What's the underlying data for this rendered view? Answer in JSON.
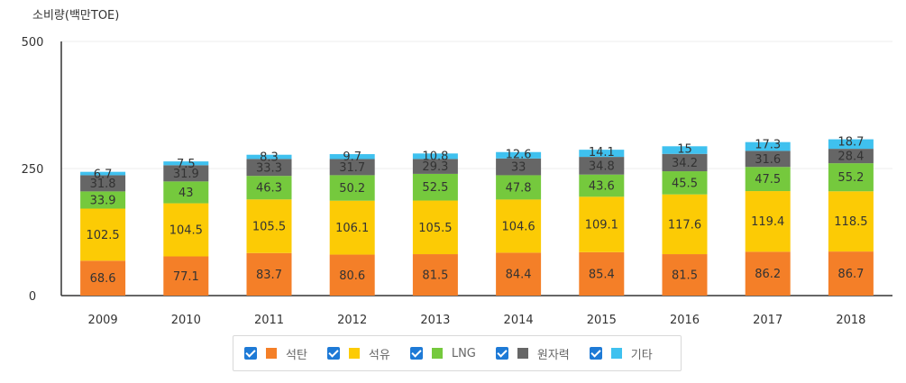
{
  "unit_label": "소비량(백만TOE)",
  "chart_data": {
    "type": "bar",
    "stacked": true,
    "categories": [
      "2009",
      "2010",
      "2011",
      "2012",
      "2013",
      "2014",
      "2015",
      "2016",
      "2017",
      "2018"
    ],
    "series": [
      {
        "name": "석탄",
        "color": "#f47f28",
        "values": [
          68.6,
          77.1,
          83.7,
          80.6,
          81.5,
          84.4,
          85.4,
          81.5,
          86.2,
          86.7
        ]
      },
      {
        "name": "석유",
        "color": "#fccb05",
        "values": [
          102.5,
          104.5,
          105.5,
          106.1,
          105.5,
          104.6,
          109.1,
          117.6,
          119.4,
          118.5
        ]
      },
      {
        "name": "LNG",
        "color": "#75c93d",
        "values": [
          33.9,
          43,
          46.3,
          50.2,
          52.5,
          47.8,
          43.6,
          45.5,
          47.5,
          55.2
        ]
      },
      {
        "name": "원자력",
        "color": "#666666",
        "values": [
          31.8,
          31.9,
          33.3,
          31.7,
          29.3,
          33,
          34.8,
          34.2,
          31.6,
          28.4
        ]
      },
      {
        "name": "기타",
        "color": "#3fc1ef",
        "values": [
          6.7,
          7.5,
          8.3,
          9.7,
          10.8,
          12.6,
          14.1,
          15,
          17.3,
          18.7
        ]
      }
    ],
    "ylim": [
      0,
      500
    ],
    "yticks": [
      "0",
      "250",
      "500"
    ],
    "grid": true,
    "legend_position": "bottom"
  }
}
